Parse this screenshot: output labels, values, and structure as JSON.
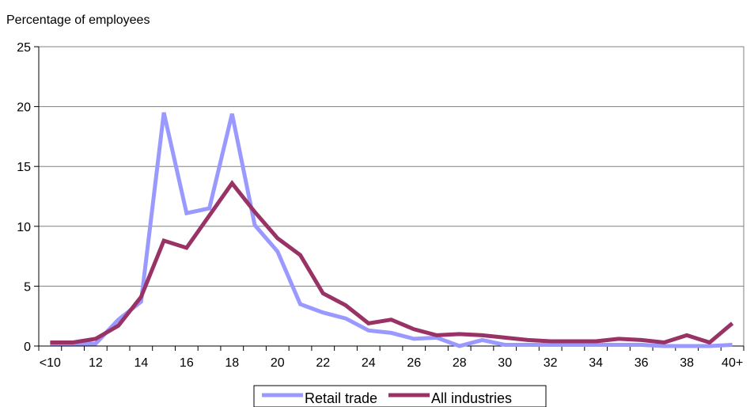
{
  "chart_data": {
    "type": "line",
    "title": "",
    "xlabel": "",
    "ylabel": "Percentage of employees",
    "ylim": [
      0,
      25
    ],
    "yticks": [
      "0",
      "5",
      "10",
      "15",
      "20",
      "25"
    ],
    "categories": [
      "<10",
      "11",
      "12",
      "13",
      "14",
      "15",
      "16",
      "17",
      "18",
      "19",
      "20",
      "21",
      "22",
      "23",
      "24",
      "25",
      "26",
      "27",
      "28",
      "29",
      "30",
      "31",
      "32",
      "33",
      "34",
      "35",
      "36",
      "37",
      "38",
      "39",
      "40+"
    ],
    "xtick_labels": [
      "<10",
      "12",
      "14",
      "16",
      "18",
      "20",
      "22",
      "24",
      "26",
      "28",
      "30",
      "32",
      "34",
      "36",
      "38",
      "40+"
    ],
    "grid": true,
    "legend_position": "bottom",
    "series": [
      {
        "name": "Retail trade",
        "color": "#9999ff",
        "values": [
          0.2,
          0.2,
          0.2,
          2.2,
          3.7,
          19.5,
          11.1,
          11.5,
          19.4,
          10.1,
          7.9,
          3.5,
          2.8,
          2.3,
          1.3,
          1.1,
          0.6,
          0.7,
          0.0,
          0.5,
          0.1,
          0.1,
          0.1,
          0.1,
          0.1,
          0.1,
          0.1,
          0.0,
          0.0,
          0.0,
          0.1
        ]
      },
      {
        "name": "All industries",
        "color": "#993366",
        "values": [
          0.3,
          0.3,
          0.6,
          1.7,
          4.1,
          8.8,
          8.2,
          10.9,
          13.6,
          11.2,
          9.0,
          7.6,
          4.4,
          3.4,
          1.9,
          2.2,
          1.4,
          0.9,
          1.0,
          0.9,
          0.7,
          0.5,
          0.4,
          0.4,
          0.4,
          0.6,
          0.5,
          0.3,
          0.9,
          0.3,
          1.9
        ]
      }
    ]
  }
}
